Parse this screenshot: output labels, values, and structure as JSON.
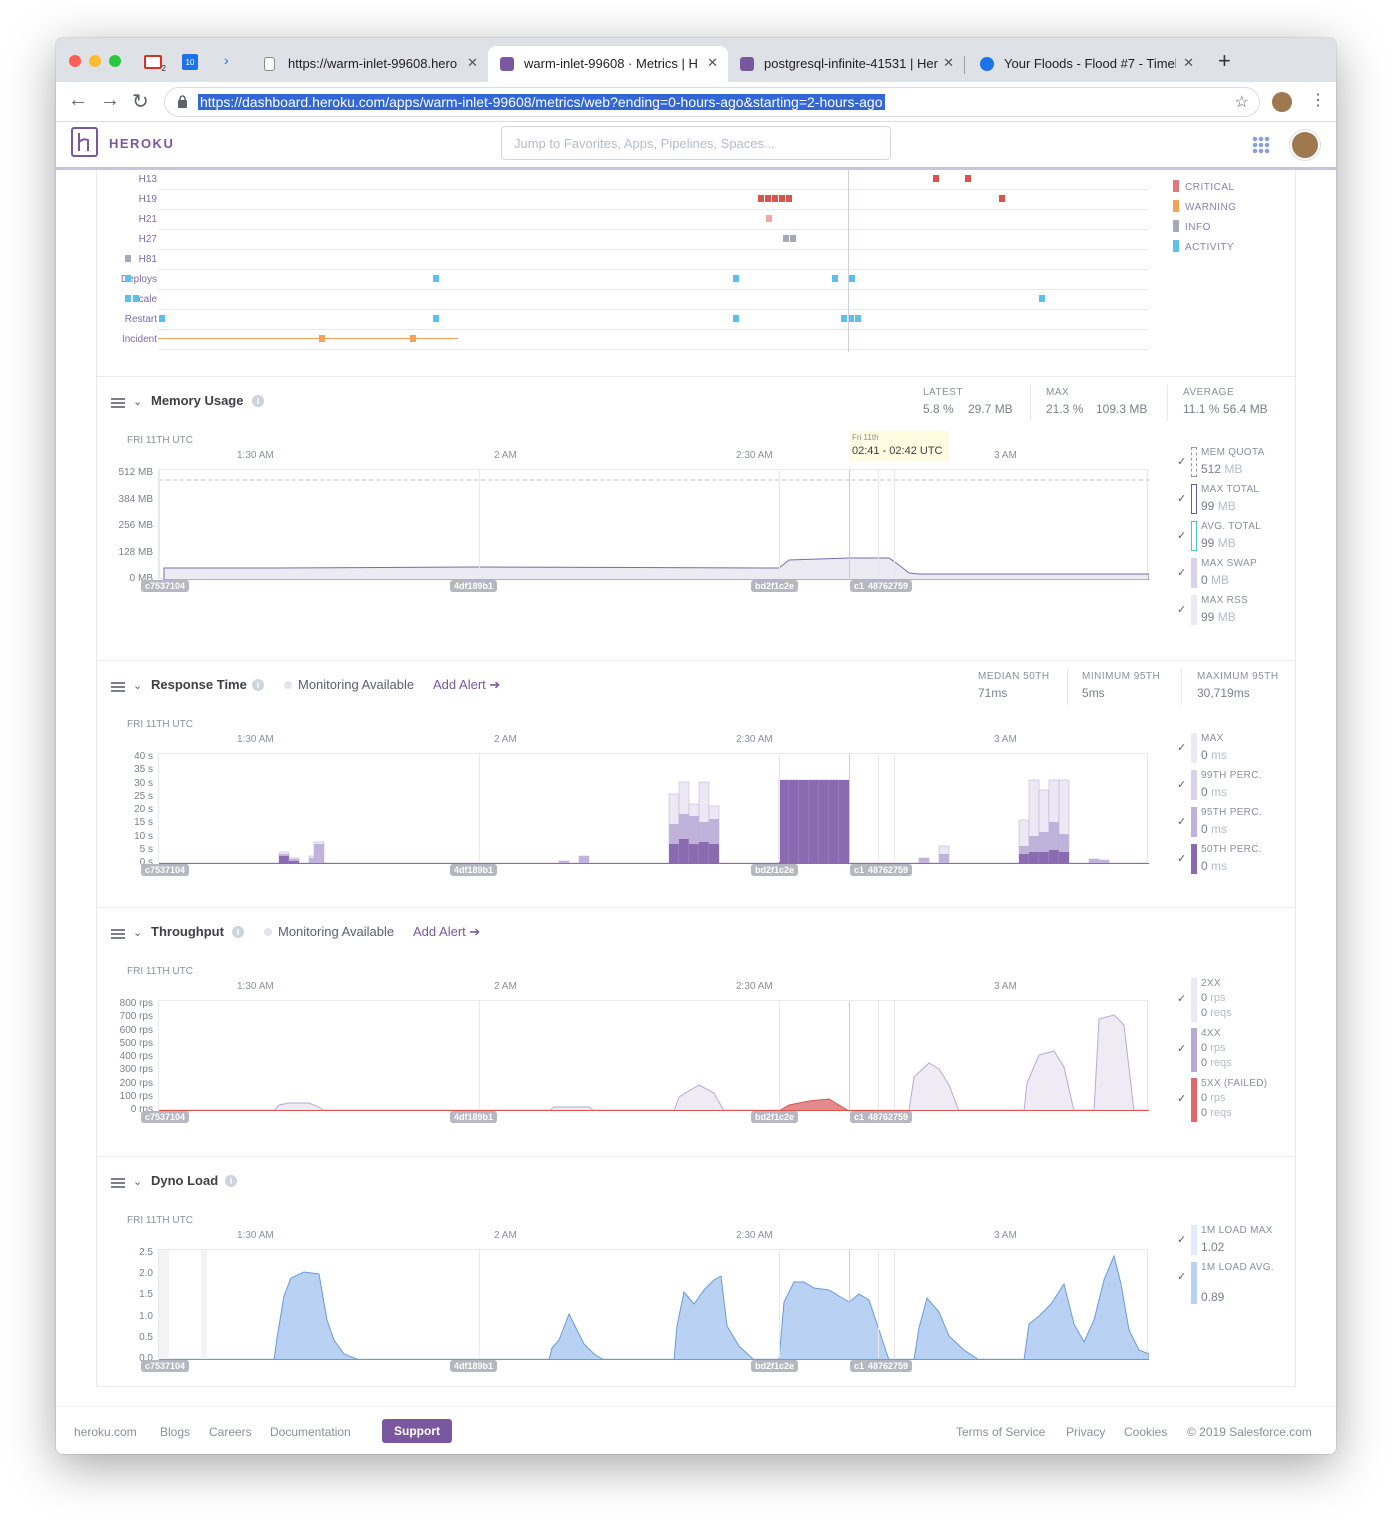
{
  "browser": {
    "tabs": [
      {
        "title": "https://warm-inlet-99608.hero",
        "color": "#888"
      },
      {
        "title": "warm-inlet-99608 · Metrics | H",
        "color": "#79589f"
      },
      {
        "title": "postgresql-infinite-41531 | Her",
        "color": "#79589f"
      },
      {
        "title": "Your Floods - Flood #7 - Timeli",
        "color": "#1a73e8"
      }
    ],
    "gmail_badge": "2",
    "cal_badge": "10",
    "url": "https://dashboard.heroku.com/apps/warm-inlet-99608/metrics/web?ending=0-hours-ago&starting=2-hours-ago"
  },
  "header": {
    "logo": "HEROKU",
    "search_placeholder": "Jump to Favorites, Apps, Pipelines, Spaces..."
  },
  "events": {
    "rows": [
      "H13",
      "H19",
      "H21",
      "H27",
      "H81",
      "Deploys",
      "Scale",
      "Restart",
      "Incident"
    ],
    "legend": [
      {
        "label": "CRITICAL",
        "color": "#e07a7a"
      },
      {
        "label": "WARNING",
        "color": "#f4a259"
      },
      {
        "label": "INFO",
        "color": "#a5a9b8"
      },
      {
        "label": "ACTIVITY",
        "color": "#5bc0eb"
      }
    ]
  },
  "time_axis": {
    "tz": "FRI 11TH UTC",
    "labels": [
      "1:30 AM",
      "2 AM",
      "2:30 AM",
      "3 AM"
    ]
  },
  "releases": [
    "c7537104",
    "4df189b1",
    "bd2f1c2e",
    "c1",
    "48762759"
  ],
  "memory": {
    "title": "Memory Usage",
    "stats": [
      {
        "label": "LATEST",
        "pct": "5.8 %",
        "mb": "29.7 MB"
      },
      {
        "label": "MAX",
        "pct": "21.3 %",
        "mb": "109.3 MB"
      },
      {
        "label": "AVERAGE",
        "pct": "11.1 %",
        "mb": "56.4 MB"
      }
    ],
    "tooltip_day": "Fri 11th",
    "tooltip_time": "02:41 - 02:42 UTC",
    "y_labels": [
      "512 MB",
      "384 MB",
      "256 MB",
      "128 MB",
      "0 MB"
    ],
    "legend": [
      {
        "name": "MEM QUOTA",
        "value": "512",
        "unit": "MB"
      },
      {
        "name": "MAX TOTAL",
        "value": "99",
        "unit": "MB"
      },
      {
        "name": "AVG. TOTAL",
        "value": "99",
        "unit": "MB"
      },
      {
        "name": "MAX SWAP",
        "value": "0",
        "unit": "MB"
      },
      {
        "name": "MAX RSS",
        "value": "99",
        "unit": "MB"
      }
    ]
  },
  "response": {
    "title": "Response Time",
    "monitoring": "Monitoring Available",
    "add_alert": "Add Alert",
    "stats": [
      {
        "label": "MEDIAN 50TH",
        "value": "71",
        "unit": "ms"
      },
      {
        "label": "MINIMUM 95TH",
        "value": "5",
        "unit": "ms"
      },
      {
        "label": "MAXIMUM 95TH",
        "value": "30,719",
        "unit": "ms"
      }
    ],
    "y_labels": [
      "40 s",
      "35 s",
      "30 s",
      "25 s",
      "20 s",
      "15 s",
      "10 s",
      "5 s",
      "0 s"
    ],
    "legend": [
      {
        "name": "MAX",
        "value": "0",
        "unit": "ms"
      },
      {
        "name": "99TH PERC.",
        "value": "0",
        "unit": "ms"
      },
      {
        "name": "95TH PERC.",
        "value": "0",
        "unit": "ms"
      },
      {
        "name": "50TH PERC.",
        "value": "0",
        "unit": "ms"
      }
    ]
  },
  "throughput": {
    "title": "Throughput",
    "monitoring": "Monitoring Available",
    "add_alert": "Add Alert",
    "y_labels": [
      "800 rps",
      "700 rps",
      "600 rps",
      "500 rps",
      "400 rps",
      "300 rps",
      "200 rps",
      "100 rps",
      "0 rps"
    ],
    "legend": [
      {
        "name": "2XX",
        "rps": "0",
        "reqs": "0"
      },
      {
        "name": "4XX",
        "rps": "0",
        "reqs": "0"
      },
      {
        "name": "5XX (FAILED)",
        "rps": "0",
        "reqs": "0"
      }
    ],
    "unit_rps": "rps",
    "unit_reqs": "reqs"
  },
  "dyno": {
    "title": "Dyno Load",
    "y_labels": [
      "2.5",
      "2.0",
      "1.5",
      "1.0",
      "0.5",
      "0.0"
    ],
    "legend": [
      {
        "name": "1M LOAD MAX",
        "value": "1.02"
      },
      {
        "name": "1M LOAD AVG.",
        "value": "0.89"
      }
    ]
  },
  "footer": {
    "links": [
      "heroku.com",
      "Blogs",
      "Careers",
      "Documentation"
    ],
    "support": "Support",
    "right_links": [
      "Terms of Service",
      "Privacy",
      "Cookies",
      "© 2019 Salesforce.com"
    ]
  }
}
